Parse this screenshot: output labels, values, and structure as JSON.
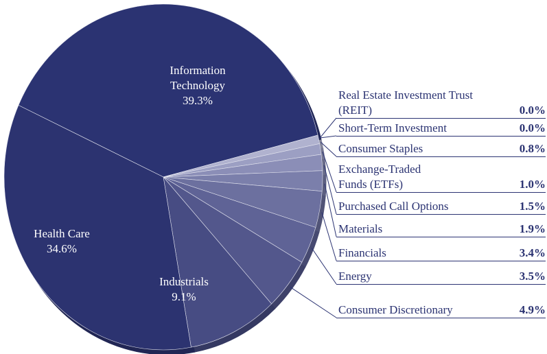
{
  "chart_data": {
    "type": "pie",
    "categories": [
      "Information Technology",
      "Real Estate Investment Trust (REIT)",
      "Short-Term Investment",
      "Consumer Staples",
      "Exchange-Traded Funds (ETFs)",
      "Purchased Call Options",
      "Materials",
      "Financials",
      "Energy",
      "Consumer Discretionary",
      "Industrials",
      "Health Care"
    ],
    "values": [
      39.3,
      0.0,
      0.0,
      0.8,
      1.0,
      1.5,
      1.9,
      3.4,
      3.5,
      4.9,
      9.1,
      34.6
    ],
    "value_labels": [
      "39.3%",
      "0.0%",
      "0.0%",
      "0.8%",
      "1.0%",
      "1.5%",
      "1.9%",
      "3.4%",
      "3.5%",
      "4.9%",
      "9.1%",
      "34.6%"
    ],
    "colors": [
      "#2b3372",
      "#d3d4e6",
      "#c3c5dc",
      "#b0b2cf",
      "#9c9fc3",
      "#8b8eb7",
      "#7b7fab",
      "#6c709f",
      "#5f6396",
      "#53578c",
      "#474c83",
      "#2c3370"
    ]
  }
}
